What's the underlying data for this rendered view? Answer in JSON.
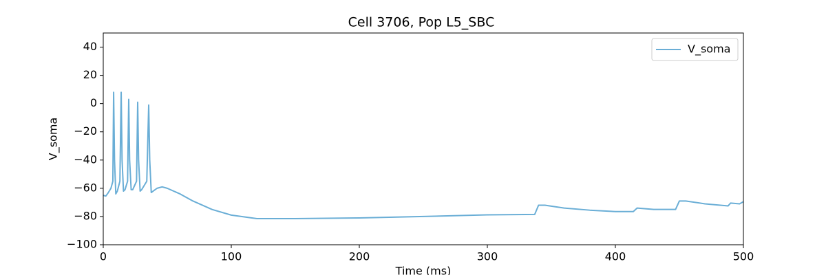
{
  "chart_data": {
    "type": "line",
    "title": "Cell 3706, Pop L5_SBC",
    "xlabel": "Time (ms)",
    "ylabel": "V_soma",
    "x": [
      0,
      2,
      4,
      6,
      7.5,
      8.1,
      8.8,
      9.8,
      11,
      13,
      14,
      14.7,
      15.8,
      17,
      19,
      19.9,
      20.6,
      21.8,
      23,
      26,
      26.9,
      27.6,
      28.8,
      30,
      34,
      35.5,
      36.3,
      37.5,
      39,
      42,
      46,
      50,
      60,
      70,
      85,
      100,
      120,
      150,
      200,
      250,
      300,
      337,
      340,
      345,
      360,
      380,
      400,
      414,
      417,
      430,
      447,
      450,
      455,
      470,
      488,
      490,
      497,
      500
    ],
    "series": [
      {
        "name": "V_soma",
        "color": "#6aaed6",
        "values": [
          -65,
          -65.5,
          -63,
          -60,
          -55,
          8,
          -40,
          -64,
          -62,
          -55,
          8,
          -40,
          -62,
          -61,
          -55,
          3,
          -40,
          -61,
          -61,
          -55,
          1,
          -40,
          -62,
          -61,
          -55,
          -1,
          -40,
          -63,
          -62,
          -60,
          -59,
          -60,
          -64,
          -69,
          -75,
          -79,
          -81.5,
          -81.5,
          -81,
          -80,
          -78.8,
          -78.5,
          -72,
          -72,
          -74,
          -75.5,
          -76.5,
          -76.5,
          -74,
          -75,
          -75,
          -69,
          -69,
          -71,
          -72.5,
          -70.5,
          -71,
          -69.5
        ]
      }
    ],
    "xlim": [
      0,
      500
    ],
    "xticks": [
      0,
      100,
      200,
      300,
      400,
      500
    ],
    "ylim": [
      -100,
      50
    ],
    "yticks": [
      {
        "value": -100,
        "label": "−100"
      },
      {
        "value": -80,
        "label": "−80"
      },
      {
        "value": -60,
        "label": "−60"
      },
      {
        "value": -40,
        "label": "−40"
      },
      {
        "value": -20,
        "label": "−20"
      },
      0,
      20,
      40
    ],
    "grid": false,
    "legend": "upper right"
  }
}
